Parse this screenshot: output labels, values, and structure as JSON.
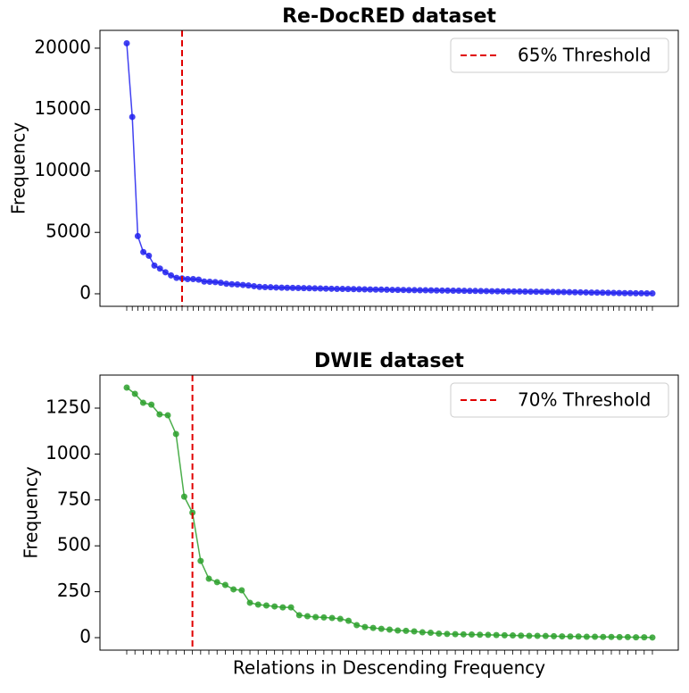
{
  "chart_data": [
    {
      "type": "line",
      "title": "Re-DocRED dataset",
      "ylabel": "Frequency",
      "series": [
        {
          "name": "Re-DocRED",
          "color": "#2020ee",
          "values": [
            20400,
            14400,
            4700,
            3400,
            3100,
            2300,
            2050,
            1750,
            1500,
            1300,
            1250,
            1200,
            1200,
            1150,
            1000,
            980,
            950,
            900,
            820,
            780,
            760,
            720,
            680,
            620,
            560,
            540,
            530,
            510,
            500,
            490,
            480,
            470,
            460,
            450,
            440,
            430,
            420,
            410,
            400,
            395,
            390,
            380,
            370,
            360,
            350,
            345,
            340,
            330,
            320,
            315,
            310,
            300,
            295,
            290,
            285,
            280,
            270,
            265,
            260,
            255,
            250,
            240,
            235,
            230,
            225,
            220,
            210,
            205,
            200,
            195,
            190,
            185,
            180,
            175,
            170,
            165,
            160,
            150,
            145,
            140,
            130,
            125,
            120,
            110,
            100,
            95,
            90,
            80,
            70,
            60,
            55,
            50,
            45,
            40,
            35,
            30
          ]
        }
      ],
      "threshold": {
        "label": "65% Threshold",
        "index": 10,
        "color": "#e00000"
      },
      "ylim": [
        -1020,
        21450
      ],
      "yticks": [
        0,
        5000,
        10000,
        15000,
        20000
      ],
      "legend": "upper right"
    },
    {
      "type": "line",
      "title": "DWIE dataset",
      "ylabel": "Frequency",
      "xlabel": "Relations in Descending Frequency",
      "series": [
        {
          "name": "DWIE",
          "color": "#2ca02c",
          "values": [
            1362,
            1328,
            1279,
            1269,
            1216,
            1211,
            1109,
            768,
            681,
            418,
            321,
            302,
            287,
            263,
            258,
            190,
            180,
            175,
            170,
            165,
            165,
            122,
            117,
            112,
            110,
            107,
            102,
            92,
            68,
            58,
            53,
            48,
            44,
            39,
            37,
            34,
            29,
            27,
            22,
            20,
            19,
            18,
            17,
            16,
            15,
            14,
            13,
            12,
            11,
            10,
            10,
            9,
            8,
            7,
            6,
            6,
            5,
            5,
            4,
            4,
            3,
            3,
            2,
            2,
            1
          ]
        }
      ],
      "threshold": {
        "label": "70% Threshold",
        "index": 8,
        "color": "#e00000"
      },
      "ylim": [
        -68,
        1430
      ],
      "yticks": [
        0,
        250,
        500,
        750,
        1000,
        1250
      ],
      "legend": "upper right"
    }
  ]
}
